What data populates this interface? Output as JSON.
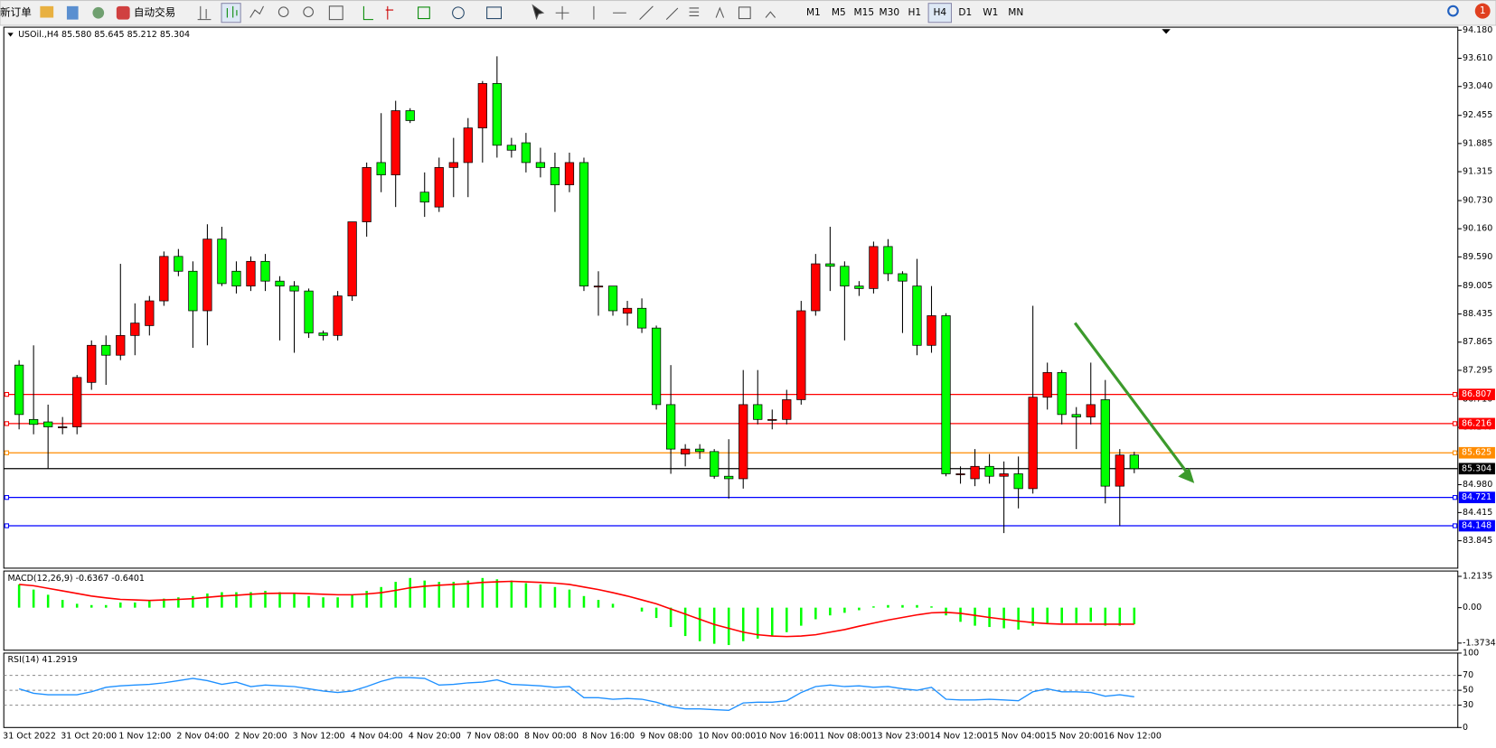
{
  "toolbar": {
    "new_order": "新订单",
    "auto_trading": "自动交易",
    "timeframes": [
      "M1",
      "M5",
      "M15",
      "M30",
      "H1",
      "H4",
      "D1",
      "W1",
      "MN"
    ],
    "active_timeframe": "H4",
    "notifications": "1"
  },
  "chart_data": [
    {
      "type": "candlestick",
      "title": "USOil.,H4  85.580 85.645 85.212 85.304",
      "categories": [
        "31 Oct 2022",
        null,
        null,
        null,
        "31 Oct 20:00",
        null,
        null,
        null,
        "1 Nov 12:00",
        null,
        null,
        null,
        "2 Nov 04:00",
        null,
        null,
        null,
        "2 Nov 20:00",
        null,
        null,
        null,
        "3 Nov 12:00",
        null,
        null,
        null,
        "4 Nov 04:00",
        null,
        null,
        null,
        "4 Nov 20:00",
        null,
        null,
        null,
        "7 Nov 08:00",
        null,
        null,
        null,
        "8 Nov 00:00",
        null,
        null,
        null,
        "8 Nov 16:00",
        null,
        null,
        null,
        "9 Nov 08:00",
        null,
        null,
        null,
        "10 Nov 00:00",
        null,
        null,
        null,
        "10 Nov 16:00",
        null,
        null,
        null,
        "11 Nov 08:00",
        null,
        null,
        null,
        "13 Nov 23:00",
        null,
        null,
        null,
        "14 Nov 12:00",
        null,
        null,
        null,
        "15 Nov 04:00",
        null,
        null,
        null,
        "15 Nov 20:00",
        null,
        null,
        null,
        "16 Nov 12:00",
        null
      ],
      "open": [
        87.4,
        86.3,
        86.25,
        86.15,
        86.15,
        87.05,
        87.8,
        87.6,
        88.0,
        88.2,
        88.7,
        89.6,
        89.3,
        88.5,
        89.95,
        89.3,
        89.0,
        89.5,
        89.1,
        89.0,
        88.9,
        88.05,
        88.0,
        88.8,
        90.3,
        91.5,
        91.25,
        92.55,
        90.9,
        90.6,
        91.4,
        91.5,
        92.2,
        93.1,
        91.85,
        91.9,
        91.5,
        91.4,
        91.05,
        91.5,
        89.0,
        89.0,
        88.45,
        88.55,
        88.15,
        86.6,
        85.6,
        85.7,
        85.65,
        85.15,
        85.1,
        86.6,
        86.3,
        86.3,
        86.7,
        88.5,
        89.45,
        89.4,
        89.0,
        88.95,
        89.8,
        89.25,
        89.0,
        87.8,
        88.4,
        85.2,
        85.1,
        85.35,
        85.15,
        85.2,
        84.9,
        86.75,
        87.25,
        86.4,
        86.35,
        86.7,
        84.95,
        85.58
      ],
      "high": [
        87.5,
        87.8,
        86.6,
        86.35,
        87.2,
        87.9,
        88.0,
        89.45,
        88.65,
        88.8,
        89.7,
        89.75,
        89.5,
        90.25,
        90.2,
        89.5,
        89.6,
        89.65,
        89.2,
        89.1,
        88.95,
        88.1,
        88.9,
        90.3,
        91.5,
        92.5,
        92.75,
        92.6,
        91.3,
        91.6,
        92.0,
        92.4,
        93.15,
        93.65,
        92.0,
        92.1,
        91.8,
        91.7,
        91.7,
        91.6,
        89.3,
        89.0,
        88.7,
        88.75,
        88.2,
        87.4,
        85.8,
        85.8,
        85.7,
        85.9,
        87.3,
        87.3,
        86.5,
        86.9,
        88.7,
        89.65,
        90.2,
        89.5,
        89.1,
        89.9,
        89.95,
        89.3,
        89.55,
        89.0,
        88.45,
        85.35,
        85.7,
        85.6,
        85.45,
        85.55,
        88.6,
        87.45,
        87.3,
        86.55,
        87.45,
        87.1,
        85.7,
        85.645
      ],
      "low": [
        86.1,
        86.0,
        85.3,
        86.0,
        86.0,
        86.9,
        87.0,
        87.5,
        87.6,
        88.0,
        88.6,
        89.2,
        87.75,
        87.8,
        89.0,
        88.85,
        88.9,
        88.9,
        87.9,
        87.65,
        87.95,
        87.9,
        87.9,
        88.7,
        90.0,
        90.9,
        90.6,
        92.3,
        90.4,
        90.5,
        90.8,
        90.8,
        91.5,
        91.6,
        91.6,
        91.3,
        91.2,
        90.5,
        90.9,
        88.9,
        88.4,
        88.4,
        88.2,
        88.05,
        86.5,
        85.2,
        85.35,
        85.5,
        85.1,
        84.7,
        84.9,
        86.2,
        86.1,
        86.2,
        86.6,
        88.4,
        88.9,
        87.9,
        88.8,
        88.85,
        89.1,
        88.05,
        87.6,
        87.65,
        85.15,
        85.0,
        84.95,
        85.0,
        84.0,
        84.5,
        84.8,
        86.5,
        86.2,
        85.7,
        86.2,
        84.6,
        84.15,
        85.212
      ],
      "close": [
        86.4,
        86.2,
        86.15,
        86.15,
        87.15,
        87.8,
        87.6,
        88.0,
        88.25,
        88.7,
        89.6,
        89.3,
        88.5,
        89.95,
        89.05,
        89.0,
        89.5,
        89.1,
        89.0,
        88.9,
        88.05,
        88.0,
        88.8,
        90.3,
        91.4,
        91.25,
        92.55,
        92.35,
        90.7,
        91.4,
        91.5,
        92.2,
        93.1,
        91.85,
        91.75,
        91.5,
        91.4,
        91.05,
        91.5,
        89.0,
        89.0,
        88.5,
        88.55,
        88.15,
        86.6,
        85.7,
        85.7,
        85.65,
        85.15,
        85.1,
        86.6,
        86.3,
        86.3,
        86.7,
        88.5,
        89.45,
        89.4,
        89.0,
        88.95,
        89.8,
        89.25,
        89.1,
        87.8,
        88.4,
        85.2,
        85.2,
        85.35,
        85.15,
        85.2,
        84.9,
        86.75,
        87.25,
        86.4,
        86.35,
        86.6,
        84.95,
        85.58,
        85.304
      ],
      "up_color": "#ff0000",
      "down_color": "#00ff00",
      "ylim": [
        83.29,
        94.24
      ],
      "yticks": [
        {
          "value": 94.18,
          "label": "94.180"
        },
        {
          "value": 93.61,
          "label": "93.610"
        },
        {
          "value": 93.04,
          "label": "93.040"
        },
        92.455,
        91.885,
        91.315,
        {
          "value": 90.73,
          "label": "90.730"
        },
        {
          "value": 90.16,
          "label": "90.160"
        },
        {
          "value": 89.59,
          "label": "89.590"
        },
        89.005,
        88.435,
        87.865,
        87.295,
        {
          "value": 86.71,
          "label": "86.710"
        },
        {
          "value": 86.14,
          "label": "86.140"
        },
        {
          "value": 84.98,
          "label": "84.980"
        },
        84.415,
        83.845
      ],
      "hlines": [
        {
          "value": 86.807,
          "color": "#ff0000"
        },
        {
          "value": 86.216,
          "color": "#ff0000"
        },
        {
          "value": 85.625,
          "color": "#ff8c00"
        },
        {
          "value": 85.304,
          "color": "#000000"
        },
        {
          "value": 84.721,
          "color": "#0000ff"
        },
        {
          "value": 84.148,
          "color": "#0000ff"
        }
      ]
    },
    {
      "type": "macd",
      "title": "MACD(12,26,9) -0.6367 -0.6401",
      "series": [
        {
          "style": "bar",
          "color": "#00ff00",
          "values": [
            0.9,
            0.7,
            0.5,
            0.3,
            0.15,
            0.1,
            0.1,
            0.2,
            0.2,
            0.25,
            0.35,
            0.4,
            0.45,
            0.55,
            0.6,
            0.6,
            0.6,
            0.65,
            0.6,
            0.55,
            0.45,
            0.4,
            0.4,
            0.5,
            0.65,
            0.8,
            1.0,
            1.15,
            1.05,
            1.0,
            1.0,
            1.05,
            1.15,
            1.1,
            1.05,
            0.95,
            0.9,
            0.8,
            0.7,
            0.45,
            0.3,
            0.15,
            0.0,
            -0.15,
            -0.4,
            -0.75,
            -1.1,
            -1.3,
            -1.4,
            -1.45,
            -1.3,
            -1.2,
            -1.1,
            -0.95,
            -0.7,
            -0.45,
            -0.3,
            -0.2,
            -0.1,
            0.05,
            0.1,
            0.1,
            0.1,
            0.05,
            -0.3,
            -0.55,
            -0.7,
            -0.75,
            -0.8,
            -0.85,
            -0.7,
            -0.6,
            -0.6,
            -0.6,
            -0.55,
            -0.7,
            -0.7,
            -0.6367
          ]
        },
        {
          "style": "line",
          "color": "#ff0000",
          "values": [
            0.9,
            0.85,
            0.75,
            0.65,
            0.55,
            0.45,
            0.38,
            0.32,
            0.3,
            0.28,
            0.3,
            0.32,
            0.35,
            0.4,
            0.45,
            0.48,
            0.52,
            0.55,
            0.56,
            0.56,
            0.54,
            0.52,
            0.5,
            0.5,
            0.53,
            0.58,
            0.67,
            0.77,
            0.83,
            0.87,
            0.9,
            0.93,
            0.98,
            1.0,
            1.02,
            1.0,
            0.98,
            0.95,
            0.9,
            0.8,
            0.7,
            0.58,
            0.45,
            0.3,
            0.15,
            -0.05,
            -0.25,
            -0.45,
            -0.65,
            -0.8,
            -0.95,
            -1.05,
            -1.1,
            -1.12,
            -1.1,
            -1.05,
            -0.95,
            -0.85,
            -0.72,
            -0.6,
            -0.48,
            -0.38,
            -0.28,
            -0.2,
            -0.18,
            -0.22,
            -0.3,
            -0.38,
            -0.45,
            -0.52,
            -0.58,
            -0.62,
            -0.64,
            -0.64,
            -0.64,
            -0.64,
            -0.64,
            -0.6401
          ]
        }
      ],
      "ylim": [
        -1.65,
        1.42
      ],
      "yticks": [
        1.2135,
        {
          "value": 0,
          "label": "0.00"
        },
        -1.3734
      ]
    },
    {
      "type": "line",
      "title": "RSI(14) 41.2919",
      "series": [
        {
          "color": "#1e90ff",
          "values": [
            52,
            46,
            44,
            44,
            44,
            48,
            54,
            56,
            57,
            58,
            60,
            63,
            66,
            63,
            58,
            61,
            55,
            57,
            56,
            55,
            52,
            49,
            47,
            49,
            55,
            62,
            67,
            67,
            66,
            57,
            58,
            60,
            61,
            64,
            58,
            57,
            56,
            54,
            55,
            40,
            40,
            38,
            39,
            38,
            34,
            28,
            25,
            25,
            24,
            23,
            33,
            34,
            34,
            36,
            47,
            55,
            57,
            55,
            56,
            54,
            55,
            52,
            50,
            54,
            38,
            37,
            37,
            38,
            37,
            36,
            48,
            52,
            48,
            48,
            47,
            42,
            44,
            41.2919
          ]
        }
      ],
      "ylim": [
        0,
        100
      ],
      "yticks": [
        100,
        70,
        50,
        30,
        0
      ]
    }
  ]
}
